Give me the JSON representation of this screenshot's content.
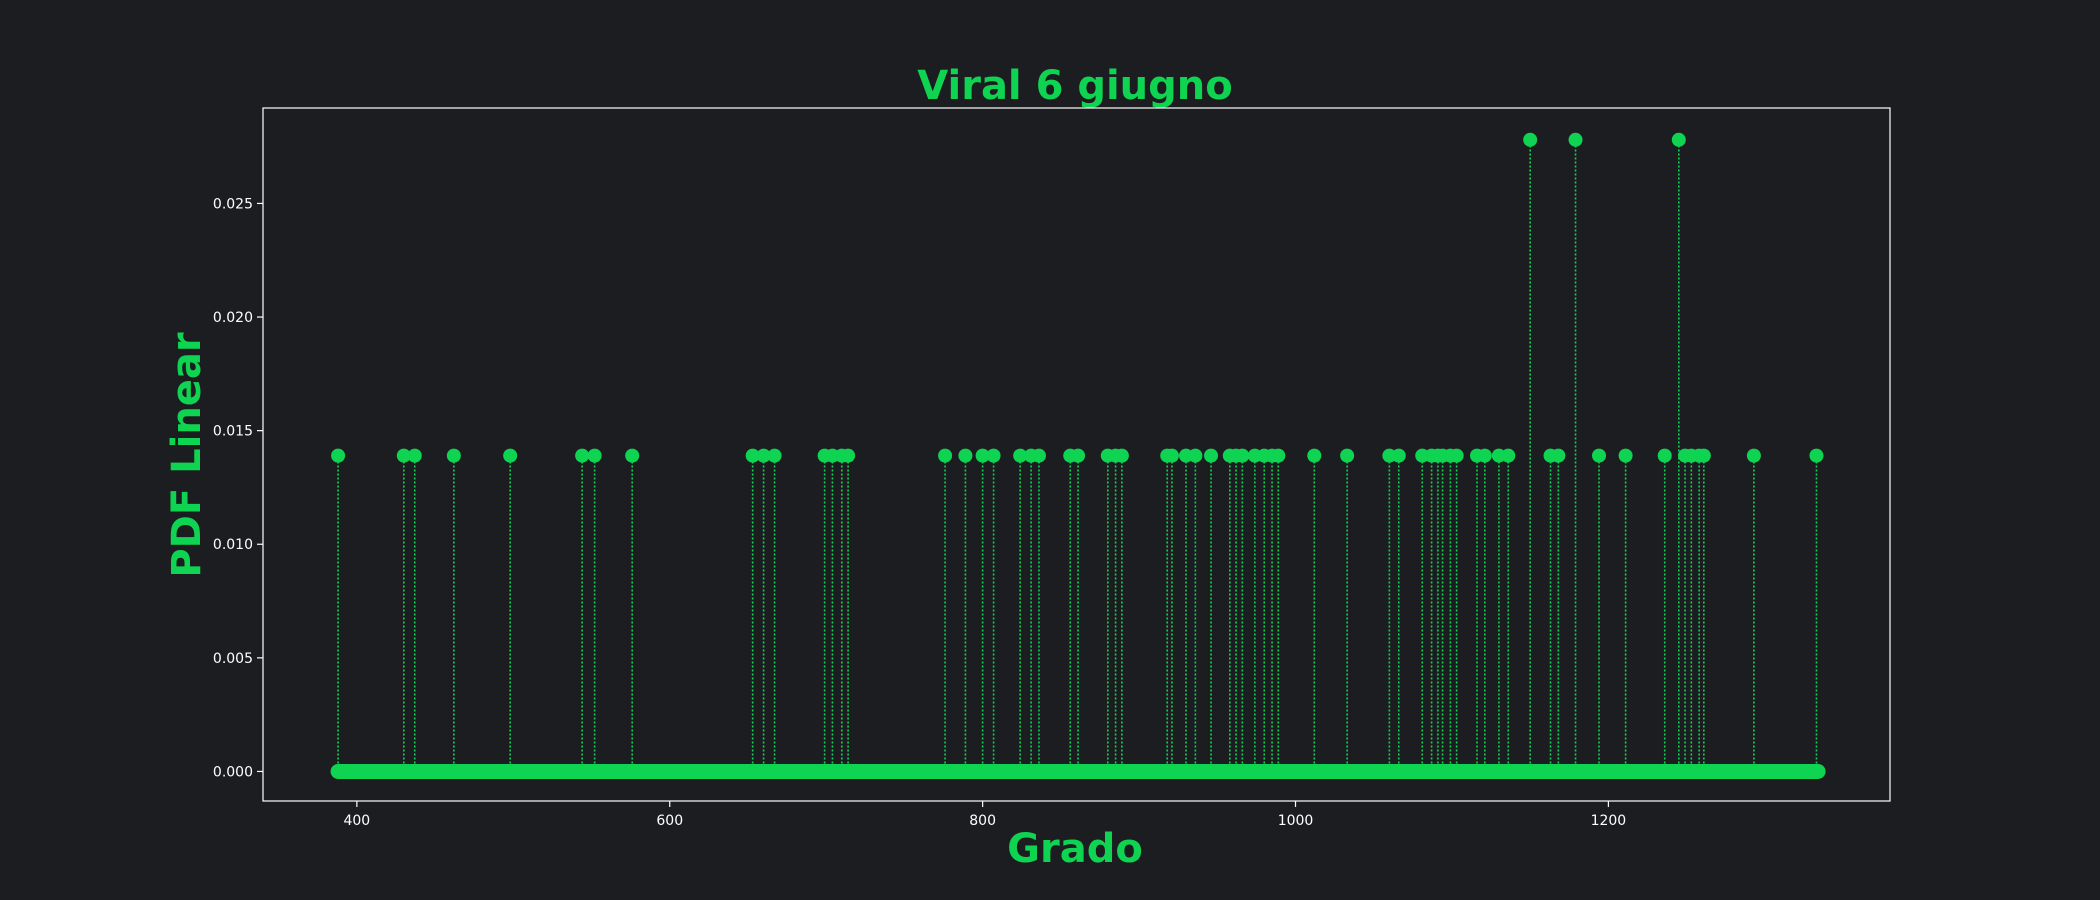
{
  "colors": {
    "background": "#1c1d21",
    "accent": "#0fd452",
    "axis": "#ffffff"
  },
  "chart_data": {
    "type": "scatter",
    "style": "stem",
    "title": "Viral 6 giugno",
    "xlabel": "Grado",
    "ylabel": "PDF Linear",
    "xlim": [
      340,
      1380
    ],
    "ylim": [
      -0.0013,
      0.0292
    ],
    "grid": false,
    "legend": "none",
    "x_ticks": [
      400,
      600,
      800,
      1000,
      1200
    ],
    "x_tick_labels": [
      "400",
      "600",
      "800",
      "1000",
      "1200"
    ],
    "y_ticks": [
      0.0,
      0.005,
      0.01,
      0.015,
      0.02,
      0.025
    ],
    "y_tick_labels": [
      "0.000",
      "0.005",
      "0.010",
      "0.015",
      "0.020",
      "0.025"
    ],
    "baseline_range": [
      388,
      1334
    ],
    "points": [
      {
        "x": 388,
        "y": 0.0139
      },
      {
        "x": 430,
        "y": 0.0139
      },
      {
        "x": 437,
        "y": 0.0139
      },
      {
        "x": 462,
        "y": 0.0139
      },
      {
        "x": 498,
        "y": 0.0139
      },
      {
        "x": 544,
        "y": 0.0139
      },
      {
        "x": 552,
        "y": 0.0139
      },
      {
        "x": 576,
        "y": 0.0139
      },
      {
        "x": 653,
        "y": 0.0139
      },
      {
        "x": 660,
        "y": 0.0139
      },
      {
        "x": 667,
        "y": 0.0139
      },
      {
        "x": 699,
        "y": 0.0139
      },
      {
        "x": 704,
        "y": 0.0139
      },
      {
        "x": 710,
        "y": 0.0139
      },
      {
        "x": 714,
        "y": 0.0139
      },
      {
        "x": 776,
        "y": 0.0139
      },
      {
        "x": 789,
        "y": 0.0139
      },
      {
        "x": 800,
        "y": 0.0139
      },
      {
        "x": 807,
        "y": 0.0139
      },
      {
        "x": 824,
        "y": 0.0139
      },
      {
        "x": 831,
        "y": 0.0139
      },
      {
        "x": 836,
        "y": 0.0139
      },
      {
        "x": 856,
        "y": 0.0139
      },
      {
        "x": 861,
        "y": 0.0139
      },
      {
        "x": 880,
        "y": 0.0139
      },
      {
        "x": 885,
        "y": 0.0139
      },
      {
        "x": 889,
        "y": 0.0139
      },
      {
        "x": 918,
        "y": 0.0139
      },
      {
        "x": 921,
        "y": 0.0139
      },
      {
        "x": 930,
        "y": 0.0139
      },
      {
        "x": 936,
        "y": 0.0139
      },
      {
        "x": 946,
        "y": 0.0139
      },
      {
        "x": 958,
        "y": 0.0139
      },
      {
        "x": 962,
        "y": 0.0139
      },
      {
        "x": 966,
        "y": 0.0139
      },
      {
        "x": 974,
        "y": 0.0139
      },
      {
        "x": 980,
        "y": 0.0139
      },
      {
        "x": 985,
        "y": 0.0139
      },
      {
        "x": 989,
        "y": 0.0139
      },
      {
        "x": 1012,
        "y": 0.0139
      },
      {
        "x": 1033,
        "y": 0.0139
      },
      {
        "x": 1060,
        "y": 0.0139
      },
      {
        "x": 1066,
        "y": 0.0139
      },
      {
        "x": 1081,
        "y": 0.0139
      },
      {
        "x": 1087,
        "y": 0.0139
      },
      {
        "x": 1091,
        "y": 0.0139
      },
      {
        "x": 1094,
        "y": 0.0139
      },
      {
        "x": 1099,
        "y": 0.0139
      },
      {
        "x": 1103,
        "y": 0.0139
      },
      {
        "x": 1116,
        "y": 0.0139
      },
      {
        "x": 1121,
        "y": 0.0139
      },
      {
        "x": 1130,
        "y": 0.0139
      },
      {
        "x": 1136,
        "y": 0.0139
      },
      {
        "x": 1150,
        "y": 0.0278
      },
      {
        "x": 1163,
        "y": 0.0139
      },
      {
        "x": 1168,
        "y": 0.0139
      },
      {
        "x": 1179,
        "y": 0.0278
      },
      {
        "x": 1194,
        "y": 0.0139
      },
      {
        "x": 1211,
        "y": 0.0139
      },
      {
        "x": 1236,
        "y": 0.0139
      },
      {
        "x": 1245,
        "y": 0.0278
      },
      {
        "x": 1249,
        "y": 0.0139
      },
      {
        "x": 1253,
        "y": 0.0139
      },
      {
        "x": 1258,
        "y": 0.0139
      },
      {
        "x": 1261,
        "y": 0.0139
      },
      {
        "x": 1293,
        "y": 0.0139
      },
      {
        "x": 1333,
        "y": 0.0139
      }
    ]
  }
}
